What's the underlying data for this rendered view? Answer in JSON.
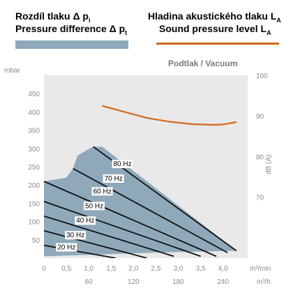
{
  "legend": {
    "pressure_cz_main": "Rozdíl tlaku",
    "pressure_cz_sub": "i",
    "pressure_en_main": "Pressure difference",
    "pressure_en_sub": "t",
    "sound_cz_main": "Hladina akustického tlaku L",
    "sound_cz_sub": "A",
    "sound_en_main": "Sound pressure level L",
    "sound_en_sub": "A",
    "delta_p": "Δ p",
    "color_pressure": "#8fa9bb",
    "color_sound": "#d2691e"
  },
  "chart_data": {
    "type": "area",
    "title": "Podtlak / Vacuum",
    "left_axis": {
      "unit": "mbar",
      "ticks": [
        50,
        100,
        150,
        200,
        250,
        300,
        350,
        400,
        450
      ],
      "range": [
        0,
        500
      ]
    },
    "right_axis": {
      "unit": "dB (A)",
      "ticks": [
        70,
        80,
        90,
        100
      ],
      "range": [
        55,
        100
      ]
    },
    "x_axis_top": {
      "unit": "m³/min",
      "ticks": [
        "0",
        "0,5",
        "1,0",
        "1,5",
        "2,0",
        "2,5",
        "3,0",
        "3,5",
        "4,0"
      ],
      "values": [
        0,
        0.5,
        1.0,
        1.5,
        2.0,
        2.5,
        3.0,
        3.5,
        4.0
      ],
      "range": [
        0,
        4.55
      ]
    },
    "x_axis_bottom": {
      "unit": "m³/h",
      "ticks": [
        "60",
        "120",
        "180",
        "240"
      ],
      "values": [
        1.0,
        2.0,
        3.0,
        4.0
      ]
    },
    "pressure_region": {
      "color": "#8fa9bb",
      "outline": [
        [
          0,
          210
        ],
        [
          0.5,
          220
        ],
        [
          0.65,
          245
        ],
        [
          0.75,
          280
        ],
        [
          0.95,
          295
        ],
        [
          1.1,
          305
        ],
        [
          1.3,
          305
        ],
        [
          4.3,
          20
        ],
        [
          2.5,
          15
        ],
        [
          0,
          5
        ]
      ]
    },
    "frequency_lines": [
      {
        "label": "20 Hz",
        "points": [
          [
            0,
            35
          ],
          [
            1.6,
            0
          ]
        ]
      },
      {
        "label": "30 Hz",
        "points": [
          [
            0,
            75
          ],
          [
            2.3,
            0
          ]
        ]
      },
      {
        "label": "40 Hz",
        "points": [
          [
            0,
            115
          ],
          [
            2.9,
            5
          ]
        ]
      },
      {
        "label": "50 Hz",
        "points": [
          [
            0,
            155
          ],
          [
            3.5,
            5
          ]
        ]
      },
      {
        "label": "60 Hz",
        "points": [
          [
            0,
            210
          ],
          [
            3.85,
            5
          ]
        ]
      },
      {
        "label": "70 Hz",
        "points": [
          [
            0.65,
            245
          ],
          [
            4.1,
            15
          ]
        ]
      },
      {
        "label": "80 Hz",
        "points": [
          [
            1.1,
            305
          ],
          [
            4.3,
            20
          ]
        ]
      }
    ],
    "sound_level_series": {
      "name": "Sound pressure level",
      "color": "#d2691e",
      "x": [
        1.3,
        1.8,
        2.3,
        2.8,
        3.3,
        3.8,
        4.0,
        4.3
      ],
      "y": [
        92.5,
        91.0,
        89.5,
        88.6,
        88.0,
        87.8,
        87.9,
        88.5
      ]
    }
  }
}
